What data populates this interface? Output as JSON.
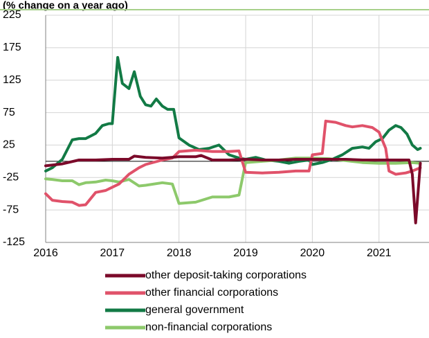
{
  "chart_data": {
    "type": "line",
    "title": "(% change on a year ago)",
    "xlabel": "",
    "ylabel": "",
    "ylim": [
      -125,
      225
    ],
    "yticks": [
      225,
      175,
      125,
      75,
      25,
      -25,
      -75,
      -125
    ],
    "xlim": [
      2016,
      2021.75
    ],
    "xticks": [
      "2016",
      "2017",
      "2018",
      "2019",
      "2020",
      "2021"
    ],
    "grid": true,
    "legend_position": "bottom",
    "series": [
      {
        "name": "other deposit-taking corporations",
        "color": "#7b0a2a",
        "x": [
          2016.0,
          2016.25,
          2016.5,
          2016.75,
          2017.0,
          2017.25,
          2017.33,
          2017.5,
          2017.75,
          2018.0,
          2018.25,
          2018.33,
          2018.5,
          2018.75,
          2019.0,
          2019.25,
          2019.5,
          2019.75,
          2020.0,
          2020.25,
          2020.5,
          2020.75,
          2021.0,
          2021.25,
          2021.4,
          2021.45,
          2021.5,
          2021.55,
          2021.62
        ],
        "y": [
          -7,
          -4,
          2,
          2,
          3,
          3,
          8,
          6,
          5,
          7,
          7,
          9,
          2,
          2,
          3,
          2,
          2,
          3,
          3,
          3,
          3,
          2,
          2,
          2,
          2,
          2,
          -20,
          -95,
          -3
        ]
      },
      {
        "name": "other financial corporations",
        "color": "#e0526a",
        "x": [
          2016.0,
          2016.1,
          2016.25,
          2016.4,
          2016.5,
          2016.6,
          2016.75,
          2016.9,
          2017.0,
          2017.1,
          2017.25,
          2017.4,
          2017.5,
          2017.75,
          2017.9,
          2018.0,
          2018.25,
          2018.5,
          2018.75,
          2018.9,
          2019.0,
          2019.25,
          2019.5,
          2019.75,
          2019.95,
          2020.0,
          2020.15,
          2020.2,
          2020.35,
          2020.5,
          2020.6,
          2020.75,
          2020.9,
          2021.0,
          2021.1,
          2021.15,
          2021.25,
          2021.4,
          2021.5,
          2021.62
        ],
        "y": [
          -50,
          -60,
          -62,
          -63,
          -68,
          -67,
          -48,
          -45,
          -40,
          -35,
          -20,
          -10,
          -5,
          2,
          5,
          15,
          17,
          15,
          15,
          16,
          -17,
          -18,
          -17,
          -15,
          -15,
          10,
          12,
          62,
          60,
          55,
          53,
          55,
          52,
          45,
          20,
          -15,
          -20,
          -18,
          -15,
          -10
        ]
      },
      {
        "name": "general government",
        "color": "#127a45",
        "x": [
          2016.0,
          2016.1,
          2016.25,
          2016.4,
          2016.5,
          2016.6,
          2016.75,
          2016.85,
          2016.95,
          2017.0,
          2017.08,
          2017.15,
          2017.25,
          2017.33,
          2017.42,
          2017.5,
          2017.58,
          2017.66,
          2017.75,
          2017.83,
          2017.92,
          2018.0,
          2018.15,
          2018.3,
          2018.45,
          2018.6,
          2018.75,
          2018.9,
          2019.0,
          2019.15,
          2019.3,
          2019.5,
          2019.65,
          2019.8,
          2019.95,
          2020.0,
          2020.15,
          2020.3,
          2020.45,
          2020.6,
          2020.75,
          2020.85,
          2020.95,
          2021.05,
          2021.15,
          2021.25,
          2021.33,
          2021.42,
          2021.5,
          2021.58,
          2021.62
        ],
        "y": [
          -15,
          -10,
          3,
          33,
          35,
          35,
          43,
          55,
          58,
          58,
          160,
          120,
          112,
          138,
          100,
          87,
          85,
          96,
          85,
          80,
          80,
          36,
          25,
          18,
          20,
          25,
          10,
          5,
          3,
          6,
          2,
          0,
          -3,
          0,
          2,
          -5,
          -2,
          3,
          10,
          20,
          22,
          20,
          30,
          35,
          48,
          55,
          52,
          42,
          25,
          18,
          20
        ]
      },
      {
        "name": "non-financial corporations",
        "color": "#8dc96b",
        "x": [
          2016.0,
          2016.1,
          2016.25,
          2016.4,
          2016.5,
          2016.6,
          2016.75,
          2016.9,
          2017.0,
          2017.1,
          2017.25,
          2017.4,
          2017.5,
          2017.75,
          2017.9,
          2018.0,
          2018.25,
          2018.5,
          2018.75,
          2018.9,
          2019.0,
          2019.25,
          2019.5,
          2019.75,
          2020.0,
          2020.25,
          2020.5,
          2020.75,
          2021.0,
          2021.25,
          2021.5,
          2021.62
        ],
        "y": [
          -27,
          -28,
          -30,
          -30,
          -36,
          -33,
          -32,
          -29,
          -30,
          -32,
          -28,
          -38,
          -37,
          -33,
          -35,
          -65,
          -63,
          -55,
          -55,
          -52,
          -2,
          0,
          2,
          5,
          5,
          4,
          1,
          -2,
          -3,
          -3,
          -2,
          -3
        ]
      }
    ]
  }
}
